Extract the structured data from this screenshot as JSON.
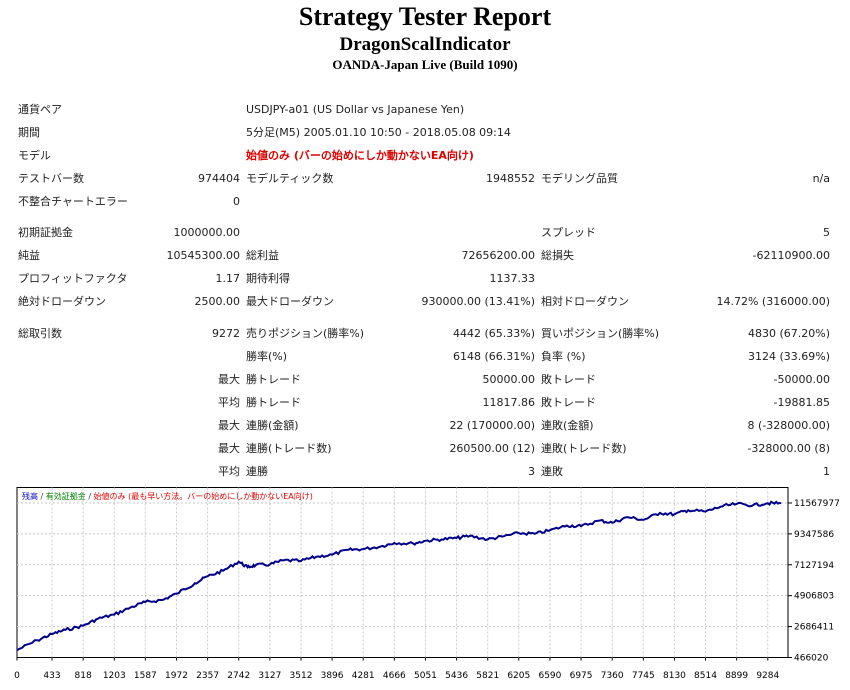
{
  "report": {
    "title": "Strategy Tester Report",
    "expert": "DragonScalIndicator",
    "server": "OANDA-Japan Live (Build 1090)"
  },
  "info": {
    "symbol_label": "通貨ペア",
    "symbol_value": "USDJPY-a01 (US Dollar vs Japanese Yen)",
    "period_label": "期間",
    "period_value": "5分足(M5) 2005.01.10 10:50 - 2018.05.08 09:14",
    "model_label": "モデル",
    "model_value": "始値のみ (バーの始めにしか動かないEA向け)",
    "bars_label": "テストバー数",
    "bars_value": "974404",
    "ticks_label": "モデルティック数",
    "ticks_value": "1948552",
    "quality_label": "モデリング品質",
    "quality_value": "n/a",
    "mismatch_label": "不整合チャートエラー",
    "mismatch_value": "0"
  },
  "stats": {
    "deposit_label": "初期証拠金",
    "deposit_value": "1000000.00",
    "spread_label": "スプレッド",
    "spread_value": "5",
    "net_label": "純益",
    "net_value": "10545300.00",
    "gross_profit_label": "総利益",
    "gross_profit_value": "72656200.00",
    "gross_loss_label": "総損失",
    "gross_loss_value": "-62110900.00",
    "pf_label": "プロフィットファクタ",
    "pf_value": "1.17",
    "expected_label": "期待利得",
    "expected_value": "1137.33",
    "abs_dd_label": "絶対ドローダウン",
    "abs_dd_value": "2500.00",
    "max_dd_label": "最大ドローダウン",
    "max_dd_value": "930000.00 (13.41%)",
    "rel_dd_label": "相対ドローダウン",
    "rel_dd_value": "14.72% (316000.00)",
    "total_trades_label": "総取引数",
    "total_trades_value": "9272",
    "short_label": "売りポジション(勝率%)",
    "short_value": "4442 (65.33%)",
    "long_label": "買いポジション(勝率%)",
    "long_value": "4830 (67.20%)",
    "winrate_label": "勝率(%)",
    "winrate_value": "6148 (66.31%)",
    "lossrate_label": "負率 (%)",
    "lossrate_value": "3124 (33.69%)",
    "max_word": "最大",
    "avg_word": "平均",
    "win_trade_label": "勝トレード",
    "loss_trade_label": "敗トレード",
    "max_win_trade": "50000.00",
    "max_loss_trade": "-50000.00",
    "avg_win_trade": "11817.86",
    "avg_loss_trade": "-19881.85",
    "cons_win_amount_label": "連勝(金額)",
    "cons_win_amount_value": "22 (170000.00)",
    "cons_loss_amount_label": "連敗(金額)",
    "cons_loss_amount_value": "8 (-328000.00)",
    "cons_win_count_label": "連勝(トレード数)",
    "cons_win_count_value": "260500.00 (12)",
    "cons_loss_count_label": "連敗(トレード数)",
    "cons_loss_count_value": "-328000.00 (8)",
    "avg_cons_win_label": "連勝",
    "avg_cons_win_value": "3",
    "avg_cons_loss_label": "連敗",
    "avg_cons_loss_value": "1"
  },
  "chart_legend": {
    "balance": "残高",
    "sep": " / ",
    "equity": "有効証拠金",
    "model": "始値のみ (最も早い方法。バーの始めにしか動かないEA向け)",
    "balance_color": "#0000c0",
    "equity_color": "#008000",
    "model_color": "#e00000"
  },
  "chart_data": {
    "type": "line",
    "title": "",
    "xlabel": "",
    "ylabel": "",
    "x_ticks": [
      "0",
      "433",
      "818",
      "1203",
      "1587",
      "1972",
      "2357",
      "2742",
      "3127",
      "3512",
      "3896",
      "4281",
      "4666",
      "5051",
      "5436",
      "5821",
      "6205",
      "6590",
      "6975",
      "7360",
      "7745",
      "8130",
      "8514",
      "8899",
      "9284"
    ],
    "y_ticks": [
      "11567977",
      "9347586",
      "7127194",
      "4906803",
      "2686411",
      "466020"
    ],
    "xlim": [
      0,
      9534
    ],
    "ylim": [
      466020,
      12678173
    ],
    "grid": true,
    "line_color": "#00008b",
    "series": [
      {
        "x": [
          0,
          250,
          433,
          600,
          818,
          1000,
          1203,
          1400,
          1587,
          1800,
          1972,
          2200,
          2357,
          2550,
          2742,
          2850,
          2950,
          3127,
          3300,
          3512,
          3700,
          3896,
          4100,
          4281,
          4500,
          4666,
          4900,
          5051,
          5250,
          5436,
          5600,
          5821,
          6000,
          6205,
          6400,
          6590,
          6800,
          6975,
          7200,
          7360,
          7550,
          7745,
          7950,
          8130,
          8300,
          8514,
          8700,
          8899,
          9100,
          9284,
          9450
        ],
        "y": [
          1000000,
          1700000,
          2150000,
          2450000,
          2750000,
          3250000,
          3550000,
          4050000,
          4450000,
          4600000,
          5050000,
          5800000,
          6300000,
          6700000,
          7350000,
          6950000,
          7100000,
          7150000,
          7450000,
          7400000,
          7700000,
          7850000,
          8200000,
          8250000,
          8450000,
          8700000,
          8650000,
          8850000,
          8950000,
          9050000,
          9200000,
          8950000,
          9150000,
          9400000,
          9350000,
          9600000,
          9950000,
          9900000,
          10300000,
          10150000,
          10550000,
          10350000,
          10850000,
          10750000,
          11050000,
          10950000,
          11300000,
          11500000,
          11400000,
          11550000,
          11545300
        ]
      }
    ]
  }
}
